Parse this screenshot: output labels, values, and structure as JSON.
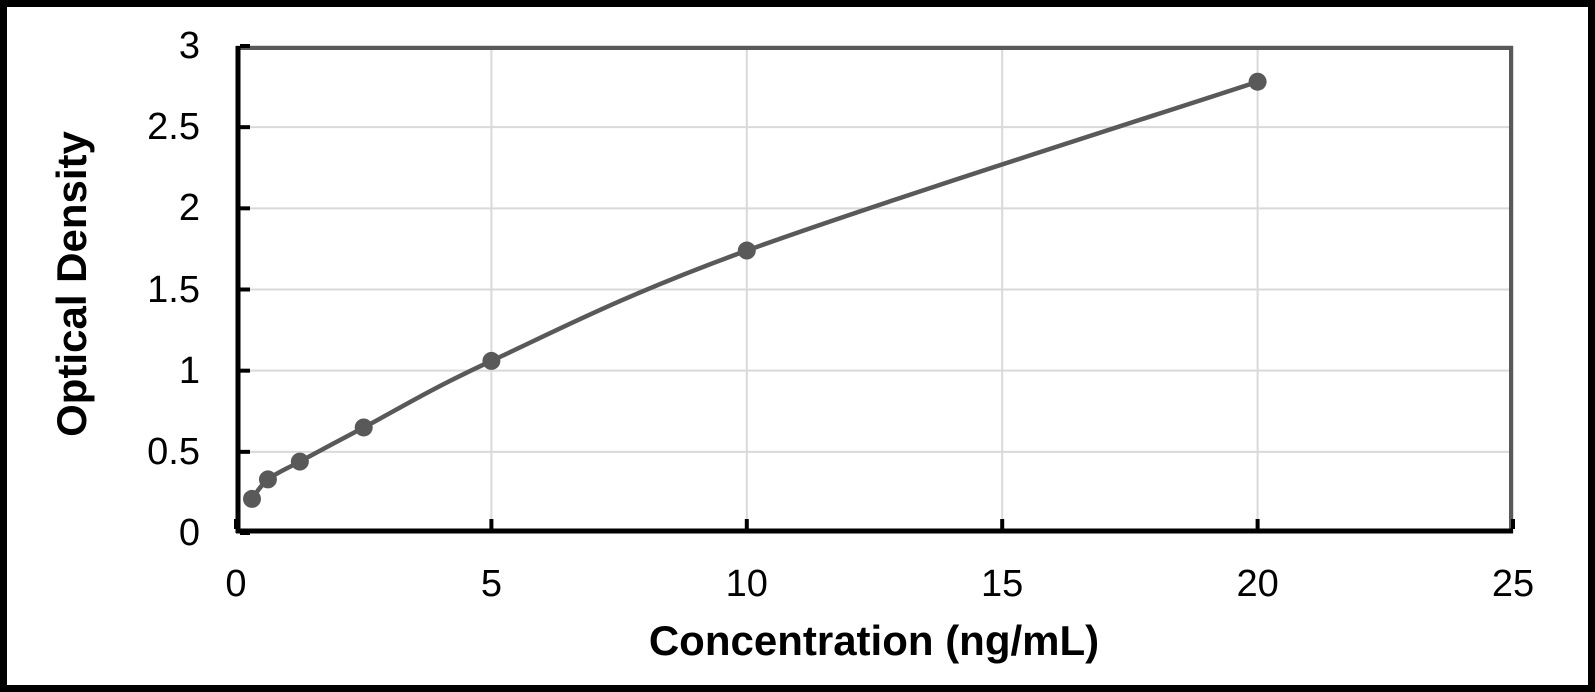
{
  "chart_data": {
    "type": "line",
    "title": "",
    "xlabel": "Concentration (ng/mL)",
    "ylabel": "Optical Density",
    "x": [
      0.313,
      0.625,
      1.25,
      2.5,
      5,
      10,
      20
    ],
    "y": [
      0.21,
      0.33,
      0.44,
      0.65,
      1.06,
      1.74,
      2.78
    ],
    "xlim": [
      0,
      25
    ],
    "ylim": [
      0,
      3
    ],
    "xticks": [
      0,
      5,
      10,
      15,
      20,
      25
    ],
    "yticks": [
      0,
      0.5,
      1,
      1.5,
      2,
      2.5,
      3
    ],
    "grid": "both",
    "legend": "none",
    "smooth_line": true,
    "marker": "circle",
    "colors": {
      "line": "#595959",
      "marker": "#595959",
      "gridline": "#D9D9D9",
      "axis": "#000000",
      "plot_border": "#595959",
      "text": "#000000",
      "background": "#FFFFFF",
      "frame": "#000000"
    }
  }
}
